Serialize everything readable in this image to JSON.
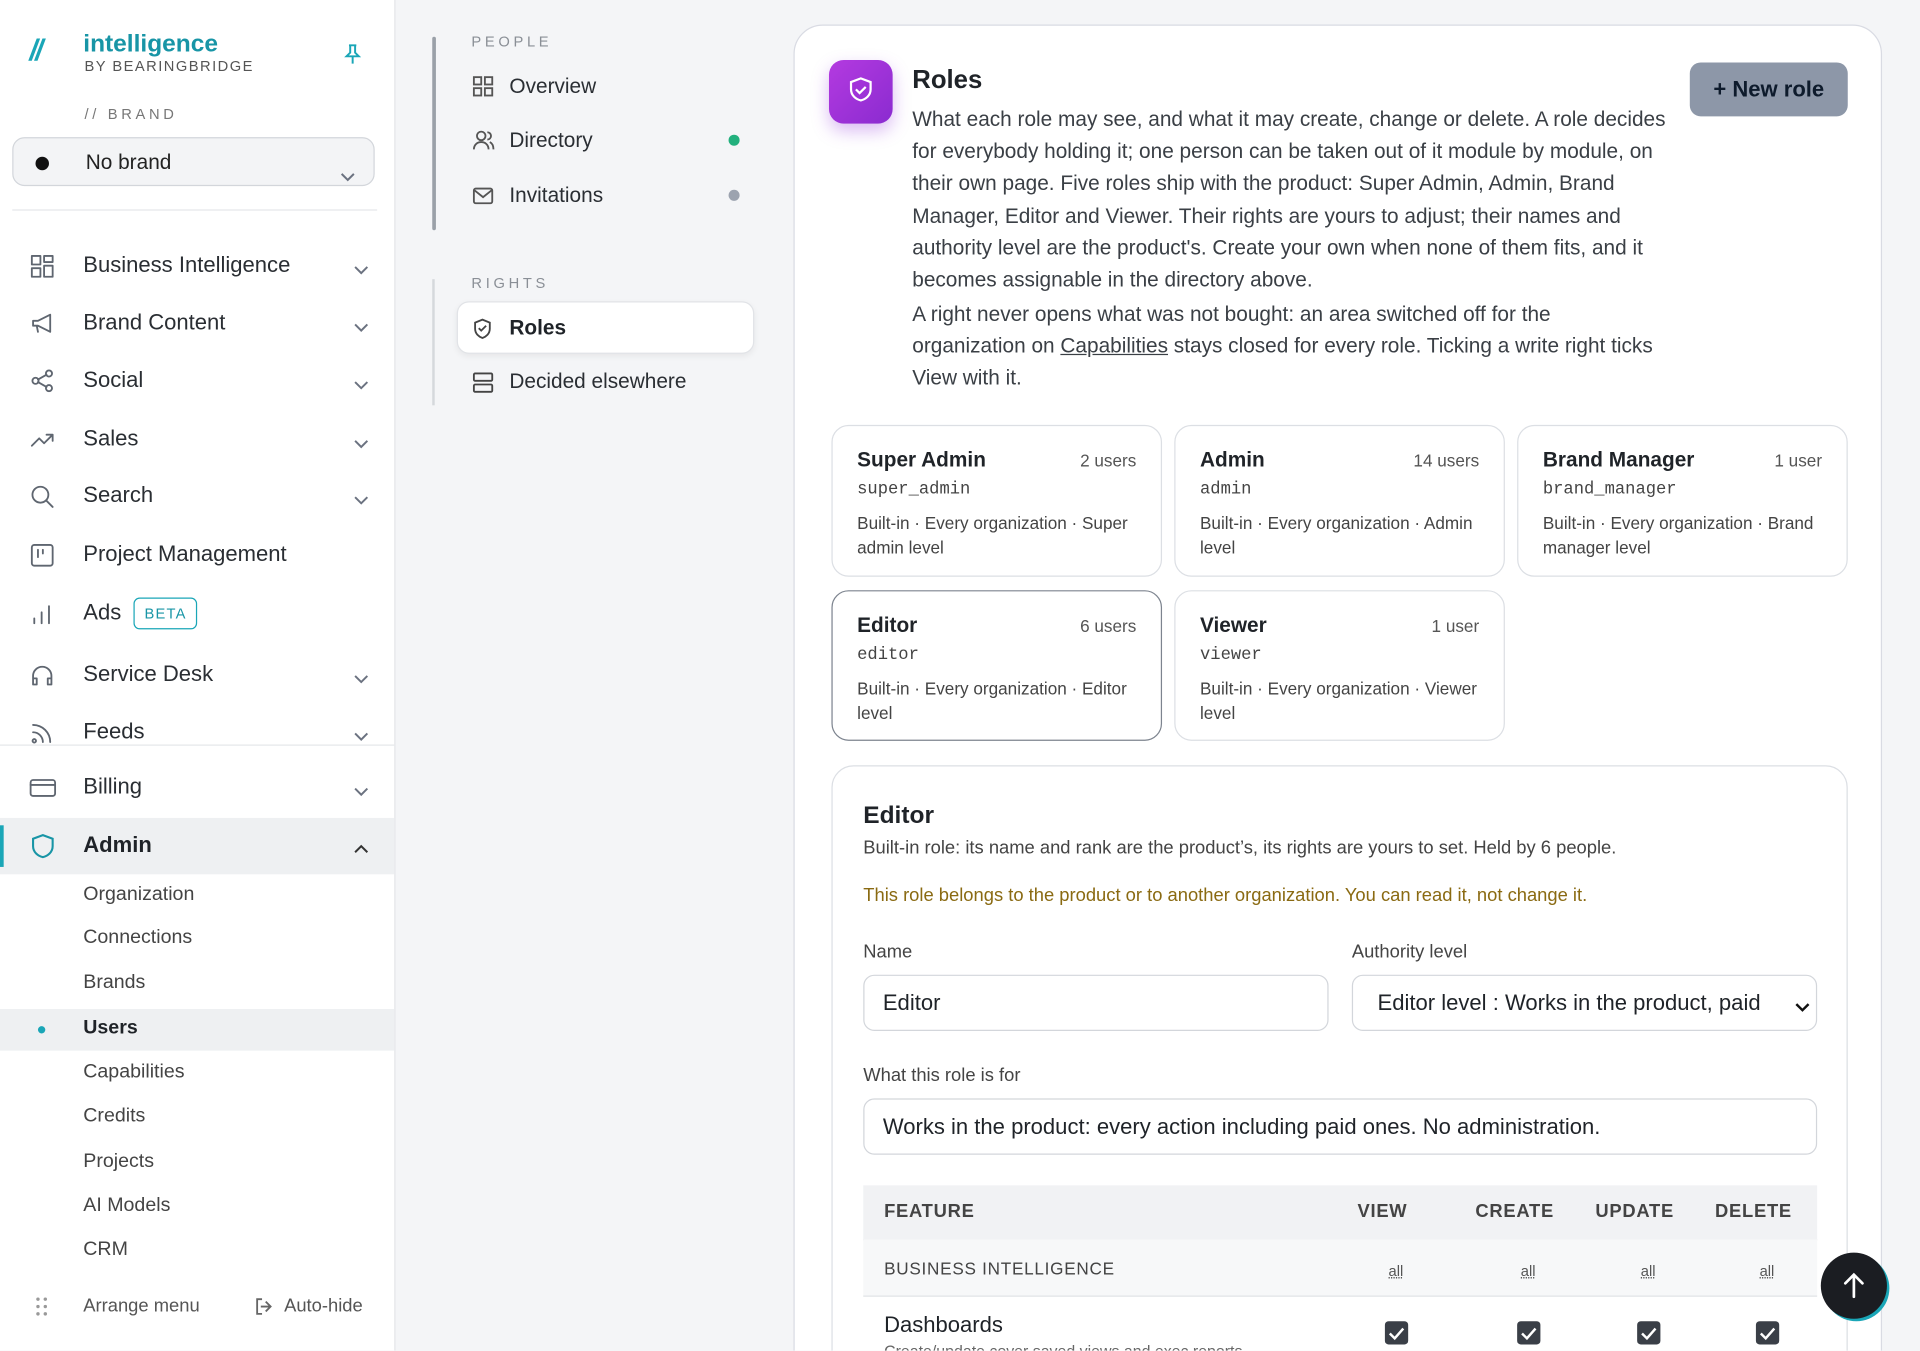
{
  "brand": {
    "name": "intelligence",
    "byline": "BY BEARINGBRIDGE",
    "section_label": "// BRAND",
    "selected": "No brand"
  },
  "nav": [
    {
      "label": "Business Intelligence"
    },
    {
      "label": "Brand Content"
    },
    {
      "label": "Social"
    },
    {
      "label": "Sales"
    },
    {
      "label": "Search"
    },
    {
      "label": "Project Management"
    },
    {
      "label": "Ads",
      "badge": "BETA"
    },
    {
      "label": "Service Desk"
    },
    {
      "label": "Feeds"
    },
    {
      "label": "Billing"
    }
  ],
  "admin": {
    "label": "Admin",
    "items": [
      "Organization",
      "Connections",
      "Brands",
      "Users",
      "Capabilities",
      "Credits",
      "Projects",
      "AI Models",
      "CRM"
    ]
  },
  "sidebar_footer": {
    "arrange": "Arrange menu",
    "autohide": "Auto-hide"
  },
  "subnav": {
    "people_label": "PEOPLE",
    "people": [
      "Overview",
      "Directory",
      "Invitations"
    ],
    "rights_label": "RIGHTS",
    "rights": [
      "Roles",
      "Decided elsewhere"
    ]
  },
  "roles_page": {
    "title": "Roles",
    "new_button": "+ New role",
    "description": "What each role may see, and what it may create, change or delete. A role decides for everybody holding it; one person can be taken out of it module by module, on their own page. Five roles ship with the product: Super Admin, Admin, Brand Manager, Editor and Viewer. Their rights are yours to adjust; their names and authority level are the product's. Create your own when none of them fits, and it becomes assignable in the directory above.",
    "note_before": "A right never opens what was not bought: an area switched off for the organization on ",
    "note_link": "Capabilities",
    "note_after": " stays closed for every role. Ticking a write right ticks View with it."
  },
  "role_cards": [
    {
      "name": "Super Admin",
      "users": "2 users",
      "key": "super_admin",
      "meta": "Built-in · Every organization · Super admin level"
    },
    {
      "name": "Admin",
      "users": "14 users",
      "key": "admin",
      "meta": "Built-in · Every organization · Admin level"
    },
    {
      "name": "Brand Manager",
      "users": "1 user",
      "key": "brand_manager",
      "meta": "Built-in · Every organization · Brand manager level"
    },
    {
      "name": "Editor",
      "users": "6 users",
      "key": "editor",
      "meta": "Built-in · Every organization · Editor level"
    },
    {
      "name": "Viewer",
      "users": "1 user",
      "key": "viewer",
      "meta": "Built-in · Every organization · Viewer level"
    }
  ],
  "editor": {
    "title": "Editor",
    "subtitle": "Built-in role: its name and rank are the product’s, its rights are yours to set. Held by 6 people.",
    "warning": "This role belongs to the product or to another organization. You can read it, not change it.",
    "name_label": "Name",
    "name_value": "Editor",
    "authority_label": "Authority level",
    "authority_value": "Editor level : Works in the product, paid",
    "purpose_label": "What this role is for",
    "purpose_value": "Works in the product: every action including paid ones. No administration.",
    "table": {
      "columns": [
        "FEATURE",
        "VIEW",
        "CREATE",
        "UPDATE",
        "DELETE"
      ],
      "group": {
        "name": "BUSINESS INTELLIGENCE",
        "toggles": [
          "all",
          "all",
          "all",
          "all"
        ]
      },
      "rows": [
        {
          "name": "Dashboards",
          "description": "Create/update cover saved views and exec reports"
        }
      ]
    }
  }
}
